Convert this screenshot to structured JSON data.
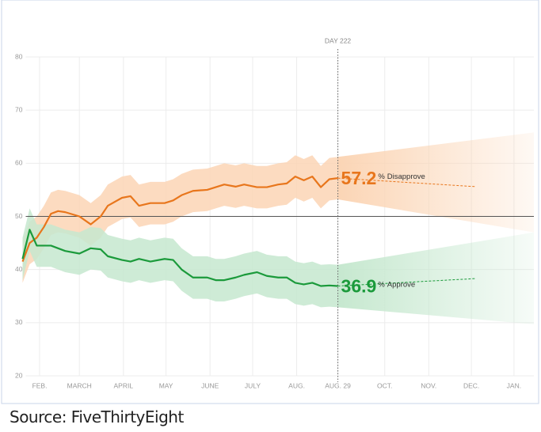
{
  "chart_data": {
    "type": "line",
    "annotation": "DAY 222",
    "annotation_x": 222,
    "unit": "%",
    "reference_y": 50,
    "xlim": [
      0,
      360
    ],
    "xticks": [
      {
        "value": 12,
        "label": "FEB."
      },
      {
        "value": 40,
        "label": "MARCH"
      },
      {
        "value": 71,
        "label": "APRIL"
      },
      {
        "value": 101,
        "label": "MAY"
      },
      {
        "value": 132,
        "label": "JUNE"
      },
      {
        "value": 162,
        "label": "JULY"
      },
      {
        "value": 193,
        "label": "AUG."
      },
      {
        "value": 222,
        "label": "AUG. 29"
      },
      {
        "value": 255,
        "label": "OCT."
      },
      {
        "value": 286,
        "label": "NOV."
      },
      {
        "value": 316,
        "label": "DEC."
      },
      {
        "value": 346,
        "label": "JAN."
      }
    ],
    "ylim": [
      20,
      80
    ],
    "yticks": [
      20,
      30,
      40,
      50,
      60,
      70,
      80
    ],
    "grid": true,
    "x": [
      0,
      5,
      10,
      15,
      20,
      25,
      30,
      40,
      48,
      55,
      60,
      70,
      76,
      82,
      90,
      100,
      106,
      112,
      120,
      130,
      136,
      142,
      150,
      156,
      165,
      172,
      180,
      186,
      192,
      198,
      204,
      210,
      216,
      222
    ],
    "series": [
      {
        "name": "Disapprove",
        "color": "#e8761c",
        "band_color": "#fbd5b5",
        "spread": 4,
        "values": [
          41.5,
          45,
          46,
          48,
          50.5,
          51,
          50.8,
          50,
          48.5,
          50,
          52,
          53.5,
          53.8,
          52,
          52.5,
          52.5,
          53,
          54,
          54.8,
          55,
          55.5,
          56,
          55.6,
          56,
          55.5,
          55.5,
          56,
          56.2,
          57.5,
          56.8,
          57.5,
          55.5,
          57,
          57.2
        ],
        "forecast": {
          "x": [
            222,
            319
          ],
          "values": [
            57.2,
            55.6
          ],
          "band_end": [
            47,
            65.8
          ]
        }
      },
      {
        "name": "Approve",
        "color": "#1b9a3b",
        "band_color": "#c6e8cf",
        "spread": 4,
        "values": [
          42,
          47.5,
          44.5,
          44.5,
          44.5,
          44,
          43.5,
          43,
          44,
          43.8,
          42.5,
          41.8,
          41.5,
          42,
          41.5,
          42,
          41.8,
          40,
          38.5,
          38.5,
          38,
          38,
          38.5,
          39,
          39.5,
          38.8,
          38.5,
          38.5,
          37.5,
          37.2,
          37.5,
          36.9,
          37,
          36.9
        ],
        "forecast": {
          "x": [
            222,
            319
          ],
          "values": [
            36.9,
            38.3
          ],
          "band_end": [
            29.7,
            47
          ]
        }
      }
    ],
    "source": "Source: FiveThirtyEight"
  }
}
